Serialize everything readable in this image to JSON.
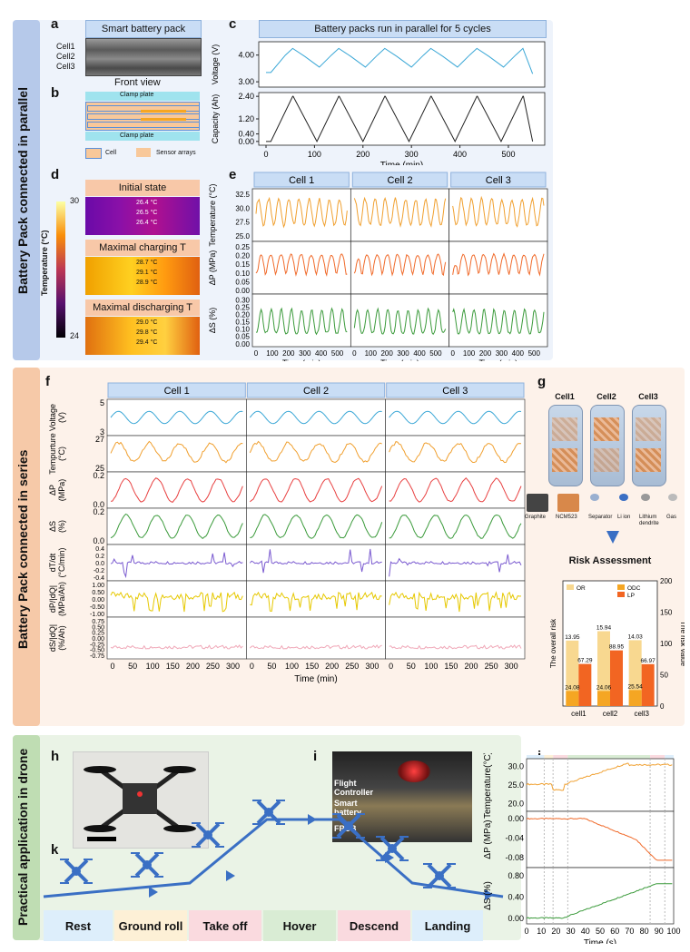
{
  "sections": {
    "parallel": "Battery Pack connected in parallel",
    "series": "Battery Pack connected in series",
    "drone": "Practical application in drone"
  },
  "letters": {
    "a": "a",
    "b": "b",
    "c": "c",
    "d": "d",
    "e": "e",
    "f": "f",
    "g": "g",
    "h": "h",
    "i": "i",
    "j": "j",
    "k": "k"
  },
  "panel_a": {
    "title": "Smart battery pack",
    "cells": [
      "Cell1",
      "Cell2",
      "Cell3"
    ],
    "caption": "Front view"
  },
  "panel_b": {
    "top": "Clamp plate",
    "bottom": "Clamp plate",
    "legend_cell": "Cell",
    "legend_sensor": "Sensor arrays"
  },
  "panel_d": {
    "cbar_label": "Temperature (°C)",
    "cbar_max": "30",
    "cbar_min": "24",
    "states": [
      {
        "title": "Initial state",
        "temps": [
          "26.4 °C",
          "26.5 °C",
          "26.4 °C"
        ]
      },
      {
        "title": "Maximal charging T",
        "temps": [
          "28.7 °C",
          "29.1 °C",
          "28.9 °C"
        ]
      },
      {
        "title": "Maximal discharging T",
        "temps": [
          "29.0 °C",
          "29.8 °C",
          "29.4 °C"
        ]
      }
    ]
  },
  "panel_g": {
    "cells": [
      "Cell1",
      "Cell2",
      "Cell3"
    ],
    "legend": [
      "Graphite",
      "NCM523",
      "Separator",
      "Li ion",
      "Lithium dendrite",
      "Gas"
    ],
    "risk_title": "Risk Assessment"
  },
  "panel_i": {
    "labels": [
      "Flight Controller",
      "Smart battery",
      "FPCB"
    ]
  },
  "stages": [
    "Rest",
    "Ground roll",
    "Take off",
    "Hover",
    "Descend",
    "Landing"
  ],
  "colors": {
    "voltage": "#3aa7d6",
    "temperature": "#f0a030",
    "pressure": "#f06a2a",
    "strain": "#3a9a3a",
    "dTdt": "#7a5ad0",
    "dPdQ": "#e6c800",
    "dSdQ": "#f0a8b8",
    "capacity": "#222222"
  },
  "chart_data": [
    {
      "id": "c",
      "type": "line",
      "title": "Battery packs run in parallel for 5 cycles",
      "xlabel": "Time (min)",
      "x_ticks": [
        0,
        100,
        200,
        300,
        400,
        500
      ],
      "xlim": [
        -15,
        575
      ],
      "series": [
        {
          "name": "Voltage (V)",
          "y_ticks": [
            "3.00",
            "4.00"
          ],
          "ylim": [
            2.8,
            4.5
          ],
          "x": [
            0,
            10,
            40,
            55,
            80,
            110,
            135,
            150,
            175,
            205,
            230,
            245,
            270,
            300,
            325,
            340,
            365,
            395,
            420,
            435,
            460,
            490,
            515,
            530,
            550
          ],
          "values": [
            3.35,
            3.35,
            4.0,
            4.25,
            3.95,
            3.55,
            4.0,
            4.25,
            3.95,
            3.55,
            4.0,
            4.25,
            3.95,
            3.55,
            4.0,
            4.25,
            3.95,
            3.55,
            4.0,
            4.25,
            3.95,
            3.55,
            4.0,
            4.25,
            3.3
          ]
        },
        {
          "name": "Capacity (Ah)",
          "y_ticks": [
            "0.00",
            "0.40",
            "1.20",
            "2.40"
          ],
          "ylim": [
            -0.2,
            2.6
          ],
          "x": [
            0,
            10,
            55,
            56,
            105,
            150,
            151,
            200,
            245,
            246,
            295,
            340,
            341,
            390,
            435,
            436,
            485,
            530,
            531,
            550
          ],
          "values": [
            0,
            0,
            2.4,
            2.4,
            0,
            2.4,
            2.4,
            0,
            2.4,
            2.4,
            0,
            2.4,
            2.4,
            0,
            2.4,
            2.4,
            0,
            2.4,
            2.4,
            0
          ]
        }
      ]
    },
    {
      "id": "e",
      "type": "line",
      "cells": [
        "Cell 1",
        "Cell 2",
        "Cell 3"
      ],
      "xlabel": "Time (min)",
      "x_ticks": [
        0,
        100,
        200,
        300,
        400,
        500
      ],
      "rows": [
        {
          "name": "Temperature (°C)",
          "y_ticks": [
            "25.0",
            "27.5",
            "30.0",
            "32.5"
          ],
          "ylim": [
            24,
            33.5
          ]
        },
        {
          "name": "ΔP (MPa)",
          "y_ticks": [
            "0.00",
            "0.05",
            "0.10",
            "0.15",
            "0.20",
            "0.25"
          ],
          "ylim": [
            -0.02,
            0.28
          ]
        },
        {
          "name": "ΔS (%)",
          "y_ticks": [
            "0.00",
            "0.05",
            "0.10",
            "0.15",
            "0.20",
            "0.25",
            "0.30"
          ],
          "ylim": [
            -0.02,
            0.34
          ]
        }
      ]
    },
    {
      "id": "f",
      "type": "line",
      "cells": [
        "Cell 1",
        "Cell 2",
        "Cell 3"
      ],
      "xlabel": "Time (min)",
      "x_ticks": [
        0,
        50,
        100,
        150,
        200,
        250,
        300
      ],
      "rows": [
        {
          "name": "Voltage (V)",
          "y_ticks": [
            "3",
            "5"
          ]
        },
        {
          "name": "Tempurture (°C)",
          "y_ticks": [
            "25",
            "27"
          ]
        },
        {
          "name": "ΔP (MPa)",
          "y_ticks": [
            "0.0",
            "0.2"
          ]
        },
        {
          "name": "ΔS (%)",
          "y_ticks": [
            "0.0",
            "0.2"
          ]
        },
        {
          "name": "dT/dt (°C/min)",
          "y_ticks": [
            "-0.4",
            "-0.2",
            "0.0",
            "0.2",
            "0.4"
          ]
        },
        {
          "name": "dP/|dQ| (MPa/Ah)",
          "y_ticks": [
            "-1.00",
            "-0.50",
            "0.00",
            "0.50",
            "1.00"
          ]
        },
        {
          "name": "dS/|dQ| (%/Ah)",
          "y_ticks": [
            "-0.75",
            "-0.50",
            "-0.25",
            "0.00",
            "0.25",
            "0.50",
            "0.75"
          ]
        }
      ]
    },
    {
      "id": "g-risk",
      "type": "bar",
      "categories": [
        "cell1",
        "cell2",
        "cell3"
      ],
      "ylabel": "The overall risk",
      "y2label": "The risk value",
      "y_ticks": [
        0,
        50,
        100,
        150,
        200
      ],
      "legend": [
        "OR",
        "ODC",
        "LP"
      ],
      "series": [
        {
          "name": "OR",
          "values": [
            13.95,
            15.94,
            14.03
          ]
        },
        {
          "name": "ODC",
          "values": [
            24.08,
            24.06,
            25.54
          ]
        },
        {
          "name": "LP",
          "values": [
            67.29,
            88.95,
            66.97
          ]
        }
      ]
    },
    {
      "id": "j",
      "type": "line",
      "xlabel": "Time (s)",
      "x_ticks": [
        0,
        10,
        20,
        30,
        40,
        50,
        60,
        70,
        80,
        90,
        100
      ],
      "rows": [
        {
          "name": "Temperature(°C)",
          "y_ticks": [
            "20.0",
            "25.0",
            "30.0"
          ],
          "ylim": [
            18,
            32
          ]
        },
        {
          "name": "ΔP (MPa)",
          "y_ticks": [
            "0.00",
            "-0.04",
            "-0.08"
          ],
          "ylim": [
            -0.1,
            0.015
          ]
        },
        {
          "name": "ΔS (%)",
          "y_ticks": [
            "0.00",
            "0.40",
            "0.80"
          ],
          "ylim": [
            -0.1,
            0.95
          ]
        }
      ]
    }
  ]
}
